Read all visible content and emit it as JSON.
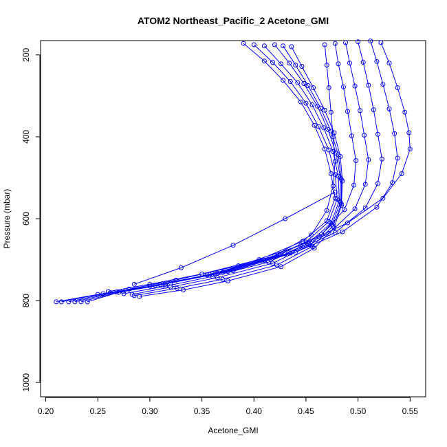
{
  "chart_data": {
    "type": "line",
    "title": "ATOM2 Northeast_Pacific_2 Acetone_GMI",
    "xlabel": "Acetone_GMI",
    "ylabel": "Pressure (mbar)",
    "xlim": [
      0.195,
      0.565
    ],
    "ylim": [
      1035,
      165
    ],
    "y_inverted": true,
    "xticks": [
      0.2,
      0.25,
      0.3,
      0.35,
      0.4,
      0.45,
      0.5,
      0.55
    ],
    "xtick_labels": [
      "0.20",
      "0.25",
      "0.30",
      "0.35",
      "0.40",
      "0.45",
      "0.50",
      "0.55"
    ],
    "yticks": [
      200,
      400,
      600,
      800,
      1000
    ],
    "ytick_labels": [
      "200",
      "400",
      "600",
      "800",
      "1000"
    ],
    "grid": false,
    "marker": "open-circle",
    "color": "#0000ff",
    "series": [
      {
        "x": [
          0.468,
          0.47,
          0.472,
          0.474,
          0.476,
          0.478,
          0.476,
          0.47,
          0.455,
          0.42,
          0.36,
          0.3,
          0.25,
          0.21
        ],
        "y": [
          175,
          225,
          280,
          340,
          400,
          460,
          520,
          580,
          640,
          690,
          735,
          765,
          785,
          803
        ]
      },
      {
        "x": [
          0.478,
          0.481,
          0.486,
          0.49,
          0.494,
          0.498,
          0.496,
          0.487,
          0.465,
          0.425,
          0.365,
          0.305,
          0.255,
          0.215
        ],
        "y": [
          172,
          222,
          278,
          338,
          398,
          458,
          518,
          578,
          638,
          688,
          733,
          763,
          783,
          803
        ]
      },
      {
        "x": [
          0.488,
          0.492,
          0.497,
          0.502,
          0.506,
          0.51,
          0.507,
          0.497,
          0.472,
          0.43,
          0.37,
          0.31,
          0.262,
          0.222
        ],
        "y": [
          170,
          220,
          276,
          336,
          396,
          456,
          516,
          576,
          636,
          686,
          731,
          761,
          781,
          803
        ]
      },
      {
        "x": [
          0.5,
          0.505,
          0.51,
          0.515,
          0.519,
          0.523,
          0.519,
          0.507,
          0.478,
          0.435,
          0.375,
          0.315,
          0.268,
          0.228
        ],
        "y": [
          168,
          218,
          274,
          334,
          394,
          454,
          514,
          574,
          634,
          684,
          729,
          759,
          779,
          803
        ]
      },
      {
        "x": [
          0.512,
          0.518,
          0.524,
          0.53,
          0.535,
          0.538,
          0.533,
          0.518,
          0.485,
          0.44,
          0.38,
          0.32,
          0.274,
          0.234
        ],
        "y": [
          166,
          216,
          272,
          332,
          392,
          452,
          512,
          572,
          632,
          682,
          727,
          757,
          777,
          803
        ]
      },
      {
        "x": [
          0.522,
          0.53,
          0.538,
          0.545,
          0.549,
          0.55,
          0.542,
          0.524,
          0.49,
          0.445,
          0.385,
          0.325,
          0.28,
          0.24
        ],
        "y": [
          170,
          220,
          280,
          340,
          390,
          430,
          490,
          550,
          610,
          665,
          715,
          750,
          772,
          803
        ]
      },
      {
        "x": [
          0.39,
          0.41,
          0.428,
          0.445,
          0.458,
          0.468,
          0.474,
          0.478,
          0.47,
          0.447,
          0.405,
          0.35,
          0.3,
          0.26
        ],
        "y": [
          172,
          215,
          262,
          315,
          372,
          430,
          490,
          550,
          605,
          655,
          700,
          735,
          760,
          778
        ]
      },
      {
        "x": [
          0.4,
          0.418,
          0.435,
          0.45,
          0.462,
          0.472,
          0.478,
          0.48,
          0.472,
          0.45,
          0.41,
          0.355,
          0.31,
          0.27
        ],
        "y": [
          175,
          218,
          265,
          318,
          375,
          432,
          492,
          552,
          607,
          657,
          702,
          737,
          762,
          780
        ]
      },
      {
        "x": [
          0.41,
          0.426,
          0.442,
          0.456,
          0.467,
          0.476,
          0.481,
          0.482,
          0.474,
          0.452,
          0.414,
          0.36,
          0.315,
          0.275
        ],
        "y": [
          178,
          222,
          268,
          322,
          378,
          436,
          496,
          556,
          611,
          661,
          706,
          741,
          765,
          783
        ]
      },
      {
        "x": [
          0.42,
          0.434,
          0.448,
          0.461,
          0.471,
          0.479,
          0.483,
          0.483,
          0.475,
          0.454,
          0.418,
          0.365,
          0.32,
          0.283
        ],
        "y": [
          175,
          220,
          270,
          325,
          382,
          440,
          500,
          560,
          614,
          664,
          709,
          744,
          767,
          785
        ]
      },
      {
        "x": [
          0.428,
          0.44,
          0.452,
          0.464,
          0.474,
          0.481,
          0.484,
          0.484,
          0.476,
          0.456,
          0.422,
          0.37,
          0.326,
          0.285
        ],
        "y": [
          178,
          225,
          275,
          330,
          386,
          444,
          504,
          564,
          618,
          668,
          713,
          748,
          770,
          788
        ]
      },
      {
        "x": [
          0.436,
          0.446,
          0.457,
          0.468,
          0.477,
          0.483,
          0.485,
          0.484,
          0.477,
          0.458,
          0.426,
          0.375,
          0.332,
          0.29
        ],
        "y": [
          180,
          228,
          280,
          335,
          390,
          448,
          508,
          568,
          622,
          672,
          717,
          752,
          774,
          790
        ]
      },
      {
        "x": [
          0.478,
          0.43,
          0.38,
          0.33,
          0.285
        ],
        "y": [
          535,
          600,
          665,
          720,
          760
        ]
      }
    ]
  }
}
